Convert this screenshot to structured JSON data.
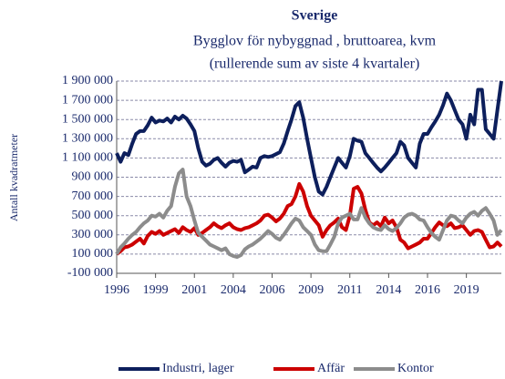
{
  "chart_data": {
    "type": "line",
    "title": "Sverige",
    "subtitle": [
      "Bygglov för nybyggnad , bruttoarea, kvm",
      "(rullerende sum av siste 4 kvartaler)"
    ],
    "y_label": "Antall kvadratmeter",
    "categories": [
      "1996",
      null,
      null,
      null,
      null,
      null,
      null,
      null,
      null,
      null,
      "1999",
      null,
      null,
      null,
      null,
      null,
      null,
      null,
      null,
      null,
      "2001",
      null,
      null,
      null,
      null,
      null,
      null,
      null,
      null,
      null,
      "2004",
      null,
      null,
      null,
      null,
      null,
      null,
      null,
      null,
      null,
      "2006",
      null,
      null,
      null,
      null,
      null,
      null,
      null,
      null,
      null,
      "2009",
      null,
      null,
      null,
      null,
      null,
      null,
      null,
      null,
      null,
      "2011",
      null,
      null,
      null,
      null,
      null,
      null,
      null,
      null,
      null,
      "2014",
      null,
      null,
      null,
      null,
      null,
      null,
      null,
      null,
      null,
      "2016",
      null,
      null,
      null,
      null,
      null,
      null,
      null,
      null,
      null,
      "2019",
      null,
      null,
      null,
      null,
      null,
      null,
      null,
      null,
      null
    ],
    "ylim": [
      -100000,
      1900000
    ],
    "yticks": [
      {
        "value": -100000,
        "label": "-100 000"
      },
      {
        "value": 100000,
        "label": "100 000"
      },
      {
        "value": 300000,
        "label": "300 000"
      },
      {
        "value": 500000,
        "label": "500 000"
      },
      {
        "value": 700000,
        "label": "700 000"
      },
      {
        "value": 900000,
        "label": "900 000"
      },
      {
        "value": 1100000,
        "label": "1 100 000"
      },
      {
        "value": 1300000,
        "label": "1 300 000"
      },
      {
        "value": 1500000,
        "label": "1 500 000"
      },
      {
        "value": 1700000,
        "label": "1 700 000"
      },
      {
        "value": 1900000,
        "label": "1 900 000"
      }
    ],
    "grid": true,
    "legend": "bottom",
    "series": [
      {
        "name": "Industri, lager",
        "color": "#0d1f5c",
        "values": [
          1150000,
          1060000,
          1150000,
          1130000,
          1250000,
          1350000,
          1380000,
          1380000,
          1440000,
          1520000,
          1470000,
          1490000,
          1480000,
          1510000,
          1470000,
          1530000,
          1500000,
          1540000,
          1510000,
          1450000,
          1380000,
          1200000,
          1060000,
          1020000,
          1040000,
          1080000,
          1100000,
          1050000,
          1010000,
          1050000,
          1070000,
          1060000,
          1080000,
          950000,
          980000,
          1010000,
          1000000,
          1100000,
          1120000,
          1110000,
          1120000,
          1140000,
          1160000,
          1250000,
          1380000,
          1500000,
          1640000,
          1680000,
          1520000,
          1300000,
          1100000,
          900000,
          750000,
          720000,
          800000,
          900000,
          1000000,
          1100000,
          1050000,
          1000000,
          1120000,
          1300000,
          1280000,
          1270000,
          1150000,
          1100000,
          1050000,
          1000000,
          960000,
          1000000,
          1050000,
          1100000,
          1150000,
          1270000,
          1230000,
          1100000,
          1050000,
          1000000,
          1250000,
          1350000,
          1350000,
          1420000,
          1480000,
          1550000,
          1650000,
          1770000,
          1700000,
          1600000,
          1500000,
          1450000,
          1300000,
          1550000,
          1450000,
          1810000,
          1810000,
          1400000,
          1350000,
          1300000,
          1600000,
          1900000
        ]
      },
      {
        "name": "Affär",
        "color": "#cc0000",
        "values": [
          100000,
          130000,
          170000,
          180000,
          200000,
          230000,
          260000,
          210000,
          290000,
          330000,
          310000,
          340000,
          300000,
          320000,
          340000,
          360000,
          320000,
          380000,
          350000,
          330000,
          370000,
          300000,
          320000,
          350000,
          380000,
          420000,
          390000,
          370000,
          400000,
          420000,
          380000,
          360000,
          350000,
          370000,
          380000,
          400000,
          420000,
          450000,
          500000,
          510000,
          480000,
          440000,
          470000,
          520000,
          600000,
          620000,
          700000,
          830000,
          750000,
          600000,
          500000,
          450000,
          400000,
          280000,
          350000,
          400000,
          430000,
          470000,
          380000,
          350000,
          500000,
          780000,
          800000,
          730000,
          560000,
          430000,
          400000,
          430000,
          390000,
          480000,
          420000,
          450000,
          380000,
          250000,
          220000,
          160000,
          180000,
          200000,
          220000,
          260000,
          260000,
          320000,
          380000,
          430000,
          400000,
          390000,
          420000,
          370000,
          380000,
          400000,
          350000,
          300000,
          340000,
          350000,
          330000,
          250000,
          170000,
          180000,
          220000,
          180000
        ]
      },
      {
        "name": "Kontor",
        "color": "#8c8c8c",
        "values": [
          100000,
          170000,
          210000,
          260000,
          300000,
          330000,
          380000,
          420000,
          450000,
          500000,
          490000,
          520000,
          480000,
          550000,
          600000,
          800000,
          940000,
          980000,
          700000,
          600000,
          450000,
          320000,
          280000,
          240000,
          200000,
          180000,
          160000,
          140000,
          160000,
          100000,
          80000,
          70000,
          90000,
          150000,
          180000,
          200000,
          230000,
          260000,
          300000,
          340000,
          310000,
          270000,
          250000,
          300000,
          360000,
          420000,
          470000,
          450000,
          380000,
          340000,
          300000,
          200000,
          140000,
          130000,
          130000,
          200000,
          280000,
          420000,
          480000,
          500000,
          520000,
          460000,
          460000,
          580000,
          480000,
          420000,
          380000,
          360000,
          350000,
          400000,
          360000,
          340000,
          370000,
          420000,
          480000,
          510000,
          520000,
          500000,
          460000,
          450000,
          380000,
          320000,
          280000,
          250000,
          350000,
          450000,
          500000,
          490000,
          450000,
          420000,
          480000,
          520000,
          540000,
          500000,
          550000,
          580000,
          520000,
          450000,
          300000,
          350000
        ]
      }
    ]
  }
}
